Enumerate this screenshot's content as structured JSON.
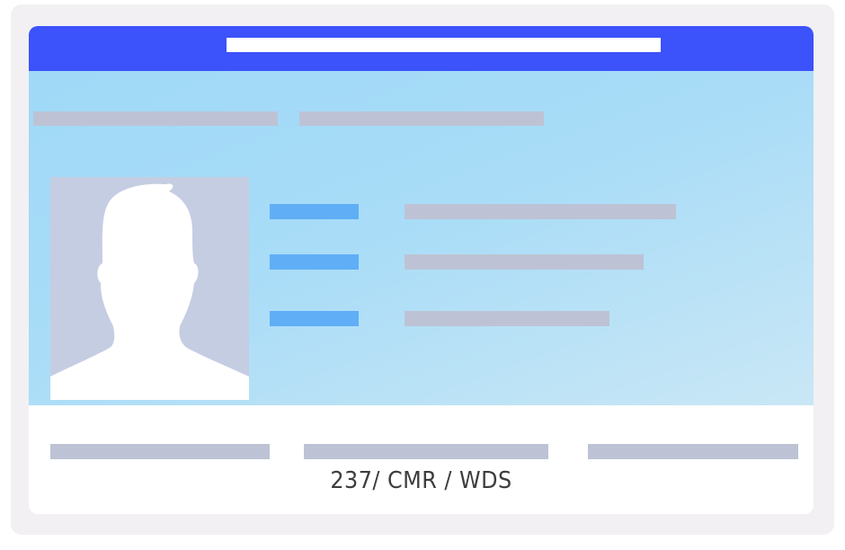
{
  "card": {
    "footer_code": "237/ CMR / WDS",
    "photo_icon": "person-silhouette-icon"
  },
  "colors": {
    "outer_background": "#f2f0f2",
    "header": "#3c52fb",
    "body_gradient_start": "#9fd9f7",
    "body_gradient_end": "#c9e7f6",
    "placeholder_gray": "#bdc3d5",
    "label_blue": "#60aef6",
    "photo_background": "#c5cde2",
    "text": "#3d3d3d"
  }
}
